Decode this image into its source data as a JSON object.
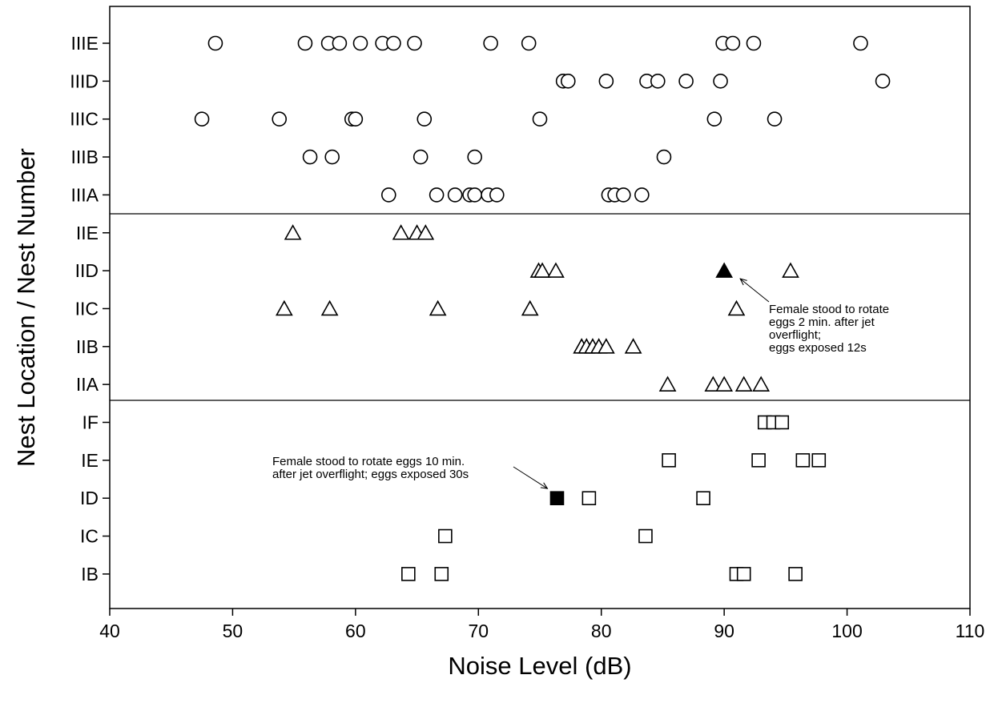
{
  "chart_data": {
    "type": "scatter",
    "xlabel": "Noise Level (dB)",
    "ylabel": "Nest Location / Nest Number",
    "xlim": [
      40,
      110
    ],
    "xticks": [
      40,
      50,
      60,
      70,
      80,
      90,
      100,
      110
    ],
    "grid": false,
    "categories": [
      "IIIE",
      "IIID",
      "IIIC",
      "IIIB",
      "IIIA",
      "IIE",
      "IID",
      "IIC",
      "IIB",
      "IIA",
      "IF",
      "IE",
      "ID",
      "IC",
      "IB"
    ],
    "series": [
      {
        "marker": "circle",
        "fill": "open",
        "points": [
          {
            "nest": "IIIE",
            "x": [
              48.6,
              55.9,
              57.8,
              58.7,
              60.4,
              62.2,
              63.1,
              64.8,
              71.0,
              74.1,
              89.9,
              90.7,
              92.4,
              101.1
            ]
          },
          {
            "nest": "IIID",
            "x": [
              76.9,
              77.3,
              80.4,
              83.7,
              84.6,
              86.9,
              89.7,
              102.9
            ]
          },
          {
            "nest": "IIIC",
            "x": [
              47.5,
              53.8,
              59.7,
              60.0,
              65.6,
              75.0,
              89.2,
              94.1
            ]
          },
          {
            "nest": "IIIB",
            "x": [
              56.3,
              58.1,
              65.3,
              69.7,
              85.1
            ]
          },
          {
            "nest": "IIIA",
            "x": [
              62.7,
              66.6,
              68.1,
              69.3,
              69.7,
              70.8,
              71.5,
              80.6,
              81.1,
              81.8,
              83.3
            ]
          }
        ]
      },
      {
        "marker": "triangle",
        "fill": "open",
        "points": [
          {
            "nest": "IIE",
            "x": [
              54.9,
              63.7,
              65.0,
              65.7
            ]
          },
          {
            "nest": "IID",
            "x": [
              74.9,
              75.2,
              76.3,
              95.4
            ]
          },
          {
            "nest": "IIC",
            "x": [
              54.2,
              57.9,
              66.7,
              74.2,
              91.0
            ]
          },
          {
            "nest": "IIB",
            "x": [
              78.4,
              78.8,
              79.3,
              79.8,
              80.4,
              82.6
            ]
          },
          {
            "nest": "IIA",
            "x": [
              85.4,
              89.1,
              90.0,
              91.6,
              93.0
            ]
          }
        ]
      },
      {
        "marker": "triangle",
        "fill": "filled",
        "points": [
          {
            "nest": "IID",
            "x": [
              90.0
            ]
          }
        ]
      },
      {
        "marker": "square",
        "fill": "open",
        "points": [
          {
            "nest": "IF",
            "x": [
              93.3,
              94.0,
              94.7
            ]
          },
          {
            "nest": "IE",
            "x": [
              85.5,
              92.8,
              96.4,
              97.7
            ]
          },
          {
            "nest": "ID",
            "x": [
              79.0,
              88.3
            ]
          },
          {
            "nest": "IC",
            "x": [
              67.3,
              83.6
            ]
          },
          {
            "nest": "IB",
            "x": [
              64.3,
              67.0,
              91.0,
              91.6,
              95.8
            ]
          }
        ]
      },
      {
        "marker": "square",
        "fill": "filled",
        "points": [
          {
            "nest": "ID",
            "x": [
              76.4
            ]
          }
        ]
      }
    ],
    "annotations": [
      {
        "lines": [
          "Female stood to rotate",
          "eggs 2 min. after jet",
          "overflight;",
          "eggs exposed 12s"
        ],
        "target_nest": "IID",
        "target_x": 90.0
      },
      {
        "lines": [
          "Female stood to rotate eggs 10 min.",
          "after jet overflight; eggs exposed 30s"
        ],
        "target_nest": "ID",
        "target_x": 76.4
      }
    ]
  }
}
